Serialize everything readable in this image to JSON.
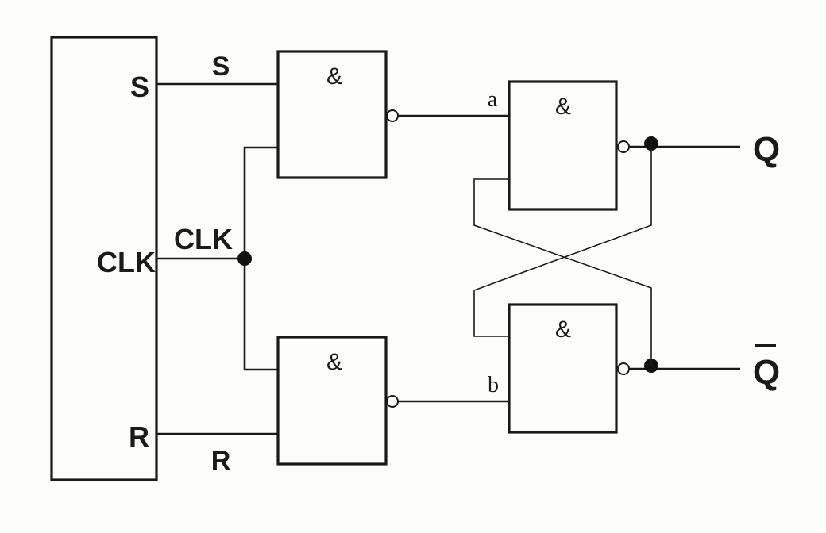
{
  "block": {
    "pin_s": "S",
    "pin_clk": "CLK",
    "pin_r": "R"
  },
  "wires": {
    "s_label": "S",
    "clk_label": "CLK",
    "r_label": "R",
    "a_label": "a",
    "b_label": "b"
  },
  "gates": {
    "gate1_symbol": "&",
    "gate2_symbol": "&",
    "gate3_symbol": "&",
    "gate4_symbol": "&"
  },
  "outputs": {
    "q_label": "Q",
    "q_bar_label": "Q"
  }
}
